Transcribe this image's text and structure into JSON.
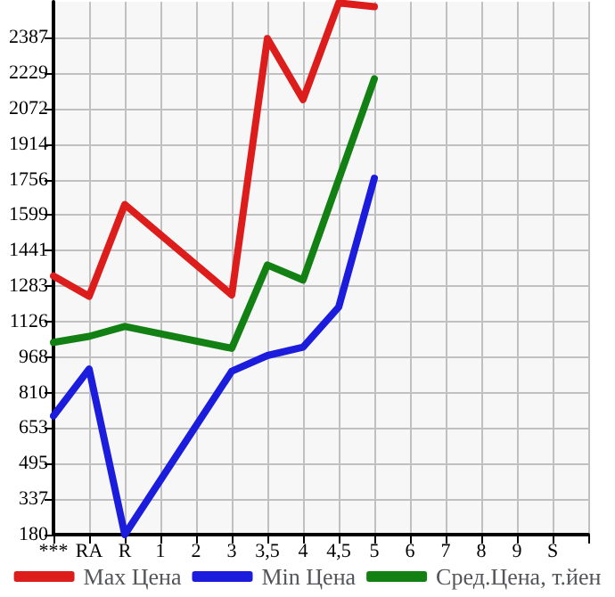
{
  "chart_data": {
    "type": "line",
    "categories": [
      "***",
      "RA",
      "R",
      "1",
      "2",
      "3",
      "3,5",
      "4",
      "4,5",
      "5",
      "6",
      "7",
      "8",
      "9",
      "S",
      null
    ],
    "series": [
      {
        "name": "Max Цена",
        "color": "#dd1c1c",
        "values": [
          1328,
          1238,
          1645,
          null,
          null,
          1244,
          2382,
          2111,
          2540,
          2523,
          null,
          null,
          null,
          null,
          null,
          null
        ]
      },
      {
        "name": "Min Цена",
        "color": "#1c1cdd",
        "values": [
          707,
          915,
          180,
          null,
          null,
          905,
          975,
          1012,
          1190,
          1762,
          null,
          null,
          null,
          null,
          null,
          null
        ]
      },
      {
        "name": "Сред.Цена, т.йен",
        "color": "#138013",
        "values": [
          1033,
          1060,
          1104,
          null,
          null,
          1007,
          1377,
          1310,
          null,
          2203,
          null,
          null,
          null,
          null,
          null,
          null
        ]
      }
    ],
    "ylim": [
      180,
      2545
    ],
    "yticks": [
      180,
      337,
      495,
      653,
      810,
      968,
      1126,
      1283,
      1441,
      1599,
      1756,
      1914,
      2072,
      2229,
      2387
    ],
    "grid": true,
    "legend": "bottom",
    "marker": "none",
    "line_style": "solid"
  }
}
